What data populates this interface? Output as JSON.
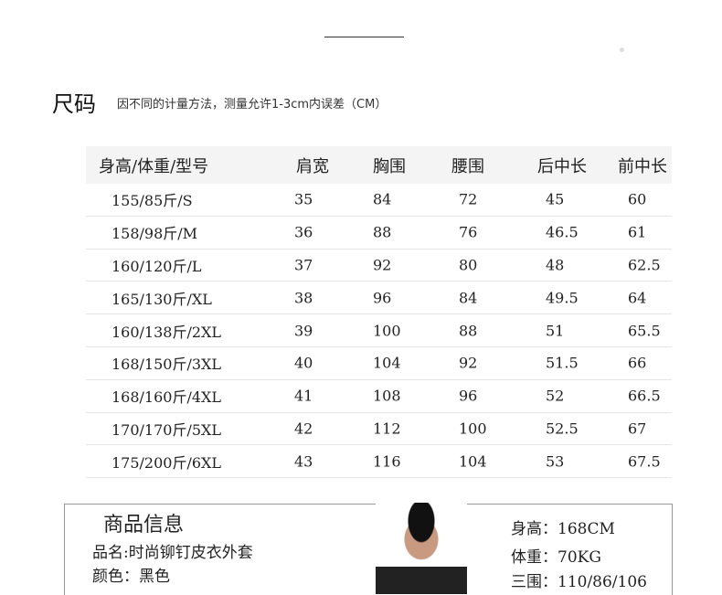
{
  "header": {
    "title": "尺码",
    "note": "因不同的计量方法，测量允许1-3cm内误差（CM）"
  },
  "table": {
    "columns": [
      "身高/体重/型号",
      "肩宽",
      "胸围",
      "腰围",
      "后中长",
      "前中长"
    ],
    "rows": [
      [
        "155/85斤/S",
        "35",
        "84",
        "72",
        "45",
        "60"
      ],
      [
        "158/98斤/M",
        "36",
        "88",
        "76",
        "46.5",
        "61"
      ],
      [
        "160/120斤/L",
        "37",
        "92",
        "80",
        "48",
        "62.5"
      ],
      [
        "165/130斤/XL",
        "38",
        "96",
        "84",
        "49.5",
        "64"
      ],
      [
        "160/138斤/2XL",
        "39",
        "100",
        "88",
        "51",
        "65.5"
      ],
      [
        "168/150斤/3XL",
        "40",
        "104",
        "92",
        "51.5",
        "66"
      ],
      [
        "168/160斤/4XL",
        "41",
        "108",
        "96",
        "52",
        "66.5"
      ],
      [
        "170/170斤/5XL",
        "42",
        "112",
        "100",
        "52.5",
        "67"
      ],
      [
        "175/200斤/6XL",
        "43",
        "116",
        "104",
        "53",
        "67.5"
      ]
    ]
  },
  "product": {
    "title": "商品信息",
    "name": "品名:时尚铆钉皮衣外套",
    "color": "颜色：黑色",
    "height": "身高：168CM",
    "weight": "体重：70KG",
    "measurements": "三围：110/86/106"
  }
}
